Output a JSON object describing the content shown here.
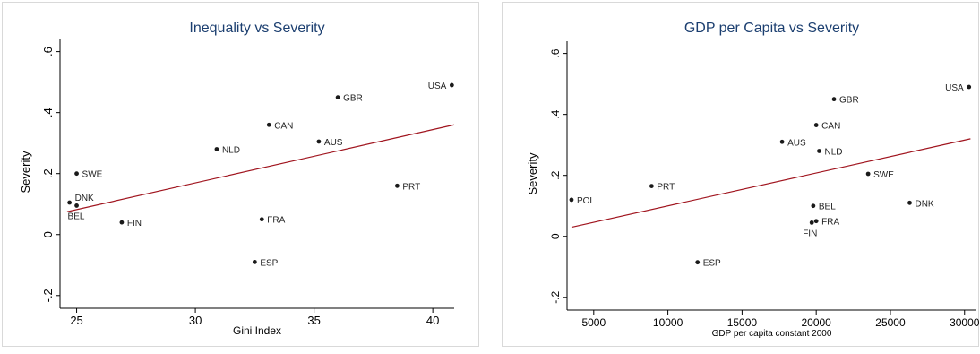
{
  "colors": {
    "point": "#1a1a1a",
    "fit_line": "#a0141e",
    "title": "#1c3f70",
    "axis": "#000000",
    "frame": "#d9d9d9"
  },
  "chart_data": [
    {
      "type": "scatter",
      "title": "Inequality vs Severity",
      "xlabel": "Gini Index",
      "ylabel": "Severity",
      "xlim": [
        24.3,
        40.9
      ],
      "ylim": [
        -0.23,
        0.64
      ],
      "xticks": [
        25,
        30,
        35,
        40
      ],
      "xtick_labels": [
        "25",
        "30",
        "35",
        "40"
      ],
      "yticks": [
        -0.2,
        0,
        0.2,
        0.4,
        0.6
      ],
      "ytick_labels": [
        "-.2",
        "0",
        ".2",
        ".4",
        ".6"
      ],
      "grid": false,
      "points": [
        {
          "label": "USA",
          "x": 40.8,
          "y": 0.49,
          "pos": "left"
        },
        {
          "label": "GBR",
          "x": 36.0,
          "y": 0.45,
          "pos": "right"
        },
        {
          "label": "CAN",
          "x": 33.1,
          "y": 0.36,
          "pos": "right"
        },
        {
          "label": "AUS",
          "x": 35.2,
          "y": 0.305,
          "pos": "right"
        },
        {
          "label": "NLD",
          "x": 30.9,
          "y": 0.28,
          "pos": "right"
        },
        {
          "label": "SWE",
          "x": 25.0,
          "y": 0.2,
          "pos": "right"
        },
        {
          "label": "PRT",
          "x": 38.5,
          "y": 0.16,
          "pos": "right"
        },
        {
          "label": "DNK",
          "x": 24.7,
          "y": 0.105,
          "pos": "right-up"
        },
        {
          "label": "BEL",
          "x": 25.0,
          "y": 0.095,
          "pos": "below-left"
        },
        {
          "label": "FIN",
          "x": 26.9,
          "y": 0.04,
          "pos": "right"
        },
        {
          "label": "FRA",
          "x": 32.8,
          "y": 0.05,
          "pos": "right"
        },
        {
          "label": "ESP",
          "x": 32.5,
          "y": -0.09,
          "pos": "right"
        }
      ],
      "fit_line": {
        "x": [
          24.6,
          40.9
        ],
        "y": [
          0.075,
          0.36
        ]
      }
    },
    {
      "type": "scatter",
      "title": "GDP per Capita vs Severity",
      "xlabel": "GDP per capita constant 2000",
      "ylabel": "Severity",
      "xlim": [
        3200,
        30800
      ],
      "ylim": [
        -0.23,
        0.64
      ],
      "xticks": [
        5000,
        10000,
        15000,
        20000,
        25000,
        30000
      ],
      "xtick_labels": [
        "5000",
        "10000",
        "15000",
        "20000",
        "25000",
        "30000"
      ],
      "yticks": [
        -0.2,
        0,
        0.2,
        0.4,
        0.6
      ],
      "ytick_labels": [
        "-.2",
        "0",
        ".2",
        ".4",
        ".6"
      ],
      "grid": false,
      "points": [
        {
          "label": "USA",
          "x": 30300,
          "y": 0.49,
          "pos": "left"
        },
        {
          "label": "GBR",
          "x": 21200,
          "y": 0.45,
          "pos": "right"
        },
        {
          "label": "CAN",
          "x": 20000,
          "y": 0.365,
          "pos": "right"
        },
        {
          "label": "AUS",
          "x": 17700,
          "y": 0.31,
          "pos": "right"
        },
        {
          "label": "NLD",
          "x": 20200,
          "y": 0.28,
          "pos": "right"
        },
        {
          "label": "SWE",
          "x": 23500,
          "y": 0.205,
          "pos": "right"
        },
        {
          "label": "PRT",
          "x": 8900,
          "y": 0.165,
          "pos": "right"
        },
        {
          "label": "POL",
          "x": 3500,
          "y": 0.12,
          "pos": "right"
        },
        {
          "label": "DNK",
          "x": 26300,
          "y": 0.11,
          "pos": "right"
        },
        {
          "label": "BEL",
          "x": 19800,
          "y": 0.1,
          "pos": "right"
        },
        {
          "label": "FRA",
          "x": 20000,
          "y": 0.05,
          "pos": "right"
        },
        {
          "label": "FIN",
          "x": 19700,
          "y": 0.045,
          "pos": "below-left"
        },
        {
          "label": "ESP",
          "x": 12000,
          "y": -0.085,
          "pos": "right"
        }
      ],
      "fit_line": {
        "x": [
          3500,
          30400
        ],
        "y": [
          0.03,
          0.32
        ]
      }
    }
  ]
}
